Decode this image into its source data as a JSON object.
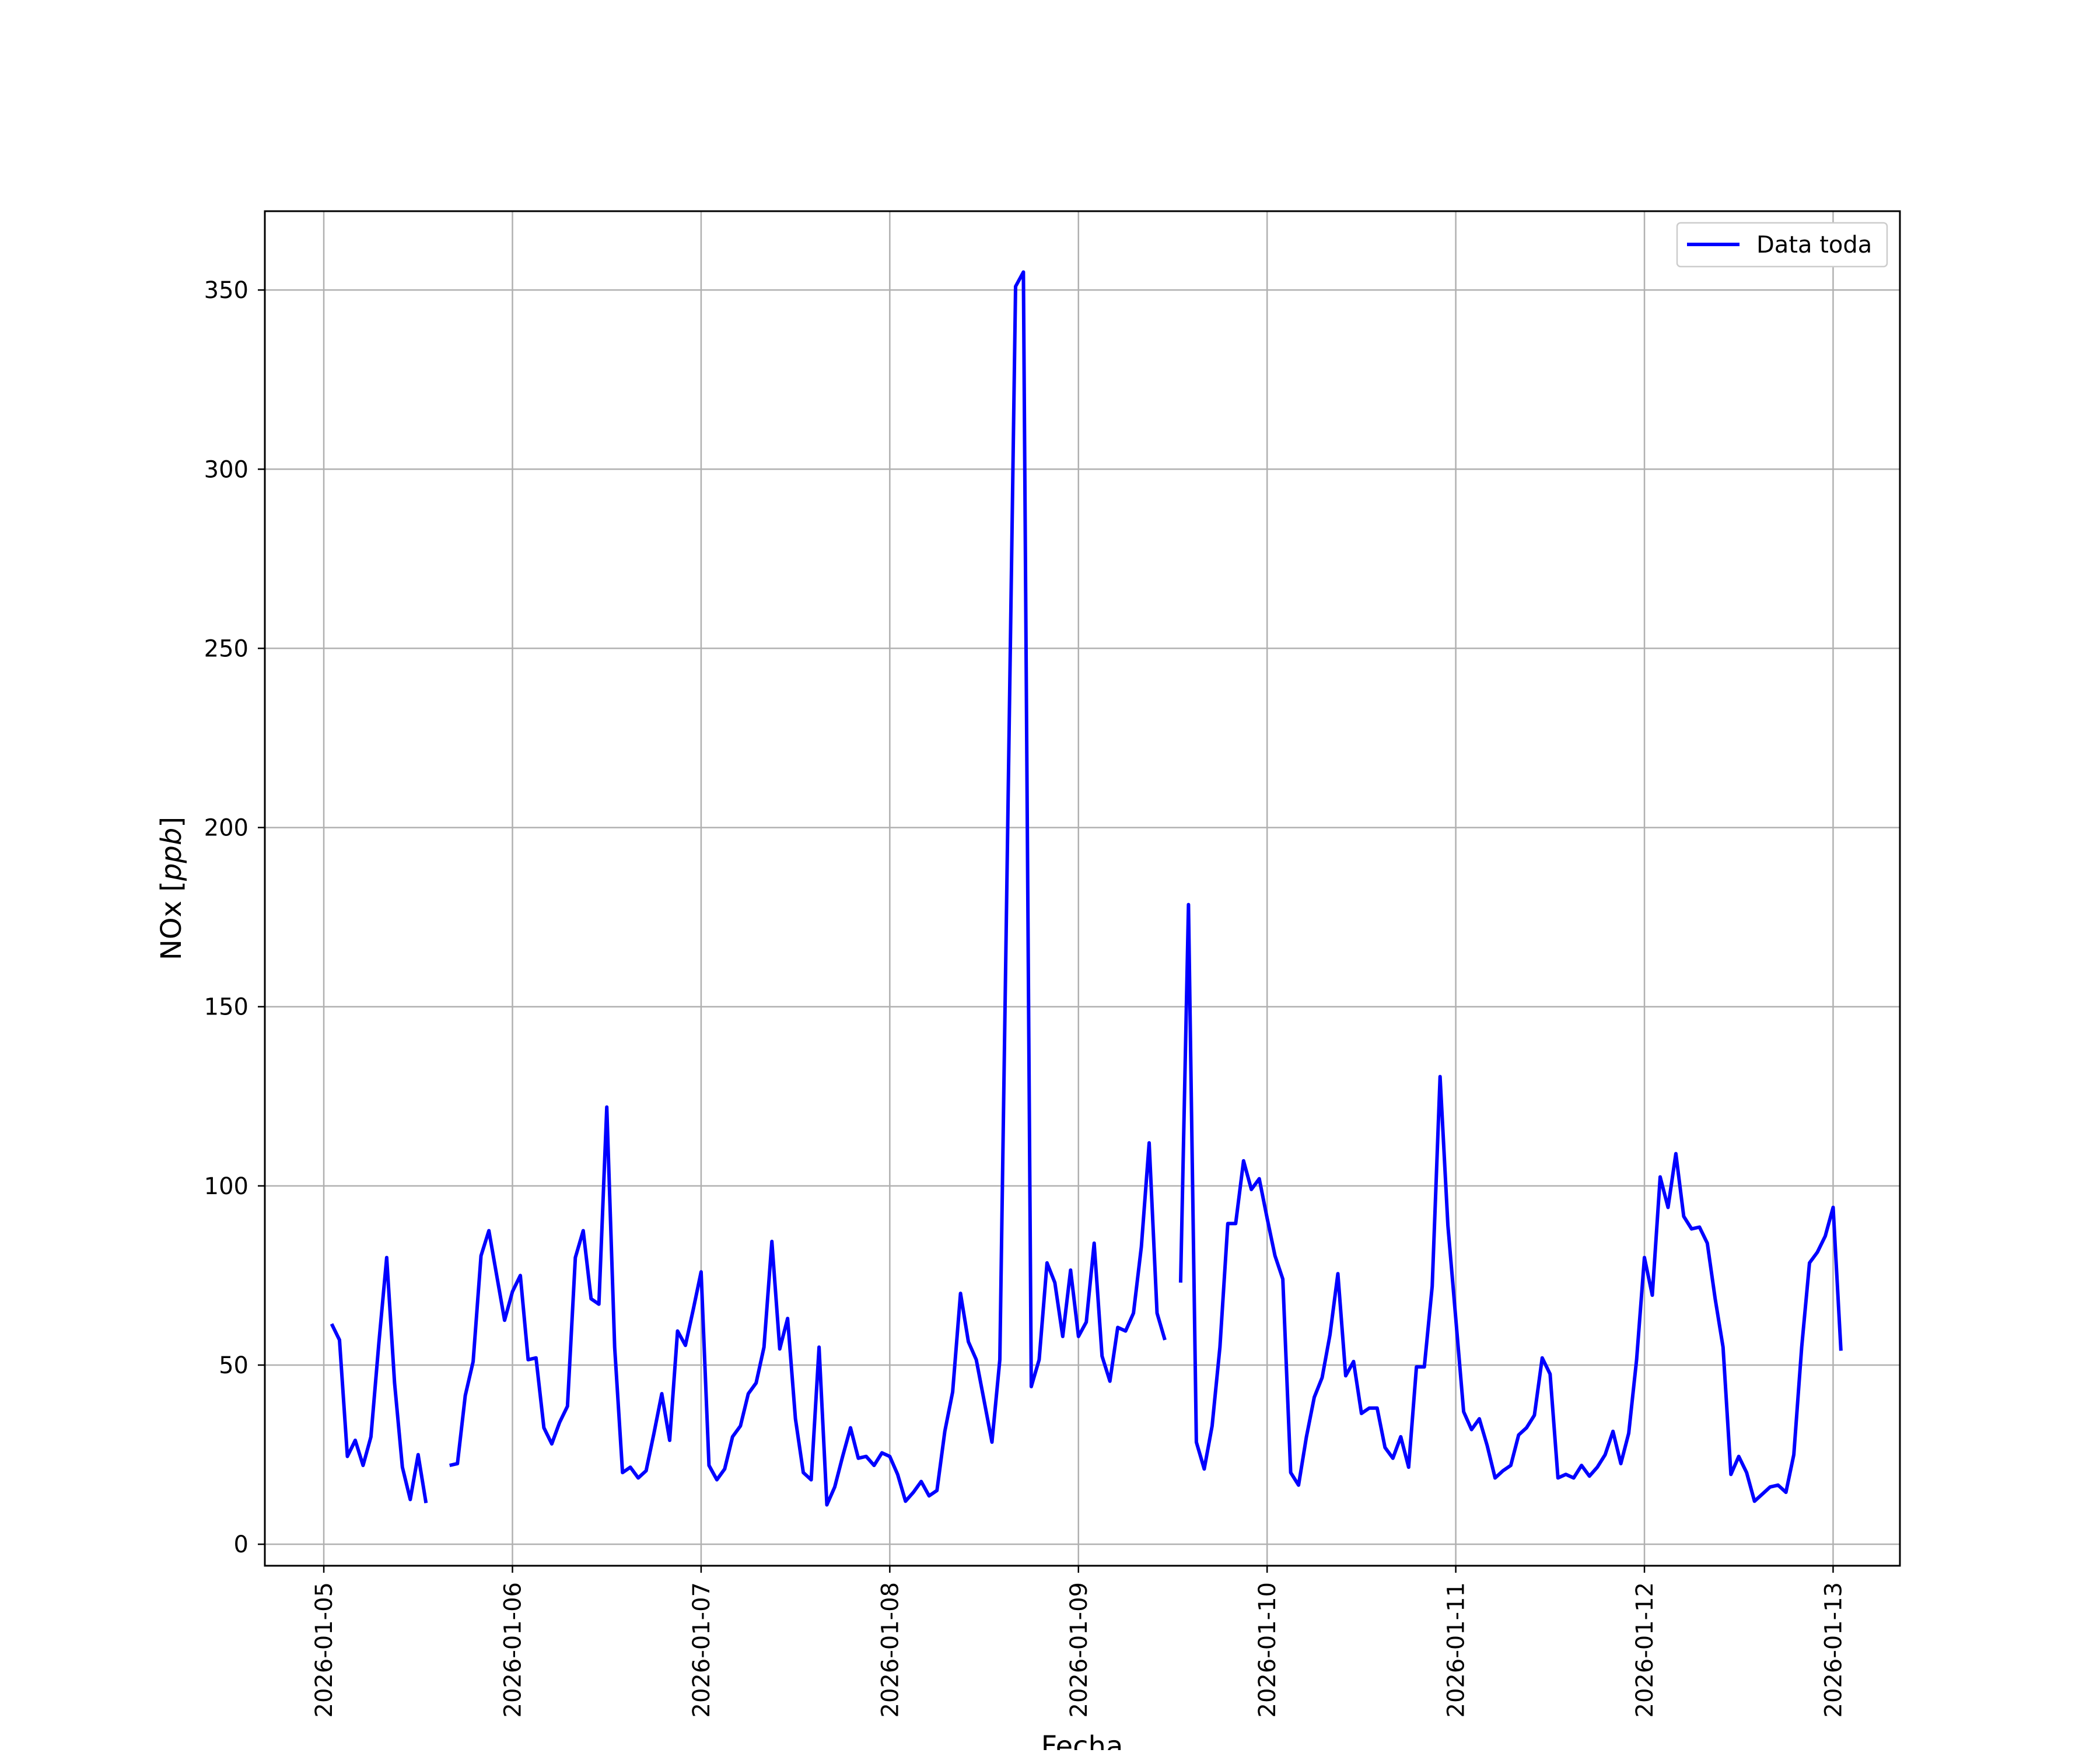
{
  "chart_data": {
    "type": "line",
    "title": "",
    "xlabel": "Fecha",
    "ylabel": "NOx",
    "ylabel_unit": "ppb",
    "xlim": [
      "2026-01-04T16:30",
      "2026-01-13T08:30"
    ],
    "ylim": [
      -6,
      372
    ],
    "x_ticks": [
      "2026-01-05",
      "2026-01-06",
      "2026-01-07",
      "2026-01-08",
      "2026-01-09",
      "2026-01-10",
      "2026-01-11",
      "2026-01-12",
      "2026-01-13"
    ],
    "y_ticks": [
      0,
      50,
      100,
      150,
      200,
      250,
      300,
      350
    ],
    "grid": true,
    "legend_position": "upper-right",
    "series": [
      {
        "name": "Data toda",
        "color": "#0000ff",
        "x_start": "2026-01-05T01:00",
        "x_step_hours": 1,
        "values": [
          61.5,
          57.0,
          24.5,
          29.0,
          22.0,
          30.0,
          56.0,
          80.0,
          45.0,
          21.5,
          12.5,
          25.0,
          11.5,
          null,
          null,
          22.0,
          22.5,
          41.5,
          51.0,
          80.5,
          87.5,
          75.0,
          62.5,
          70.5,
          75.0,
          51.5,
          52.0,
          32.5,
          28.0,
          34.0,
          38.5,
          80.0,
          87.5,
          68.5,
          67.0,
          122.0,
          55.0,
          20.0,
          21.5,
          18.5,
          20.5,
          31.0,
          42.0,
          29.0,
          59.5,
          55.5,
          65.5,
          76.0,
          22.0,
          18.0,
          21.0,
          30.0,
          33.0,
          42.0,
          45.0,
          55.0,
          84.5,
          54.5,
          63.0,
          35.0,
          20.0,
          18.0,
          55.0,
          11.0,
          16.0,
          24.5,
          32.5,
          24.0,
          24.5,
          22.0,
          25.5,
          24.5,
          19.5,
          12.0,
          14.5,
          17.5,
          13.5,
          15.0,
          31.5,
          42.5,
          70.0,
          56.5,
          51.5,
          40.0,
          28.5,
          51.5,
          200.0,
          351.0,
          355.0,
          44.0,
          51.5,
          78.5,
          73.0,
          58.0,
          76.5,
          58.0,
          62.0,
          84.0,
          52.5,
          45.5,
          60.5,
          59.5,
          64.5,
          83.0,
          112.0,
          64.5,
          57.0,
          null,
          73.0,
          178.5,
          28.5,
          21.0,
          33.0,
          55.0,
          89.5,
          89.5,
          107.0,
          99.0,
          102.0,
          91.0,
          80.5,
          74.0,
          20.0,
          16.5,
          30.0,
          41.0,
          46.5,
          58.5,
          75.5,
          47.0,
          51.0,
          36.5,
          38.0,
          38.0,
          27.0,
          24.0,
          30.0,
          21.5,
          49.5,
          49.5,
          72.0,
          130.5,
          89.0,
          63.0,
          37.0,
          32.0,
          35.0,
          27.5,
          18.5,
          20.5,
          22.0,
          30.5,
          32.5,
          36.0,
          52.0,
          47.5,
          18.5,
          19.5,
          18.5,
          22.0,
          19.0,
          21.5,
          25.0,
          31.5,
          22.5,
          31.0,
          51.5,
          80.0,
          69.5,
          102.5,
          94.0,
          109.0,
          91.5,
          88.0,
          88.5,
          84.0,
          68.5,
          55.0,
          19.5,
          24.5,
          20.0,
          12.0,
          14.0,
          16.0,
          16.5,
          14.5,
          25.0,
          55.0,
          78.5,
          81.5,
          86.0,
          94.0,
          54.0
        ]
      }
    ]
  }
}
